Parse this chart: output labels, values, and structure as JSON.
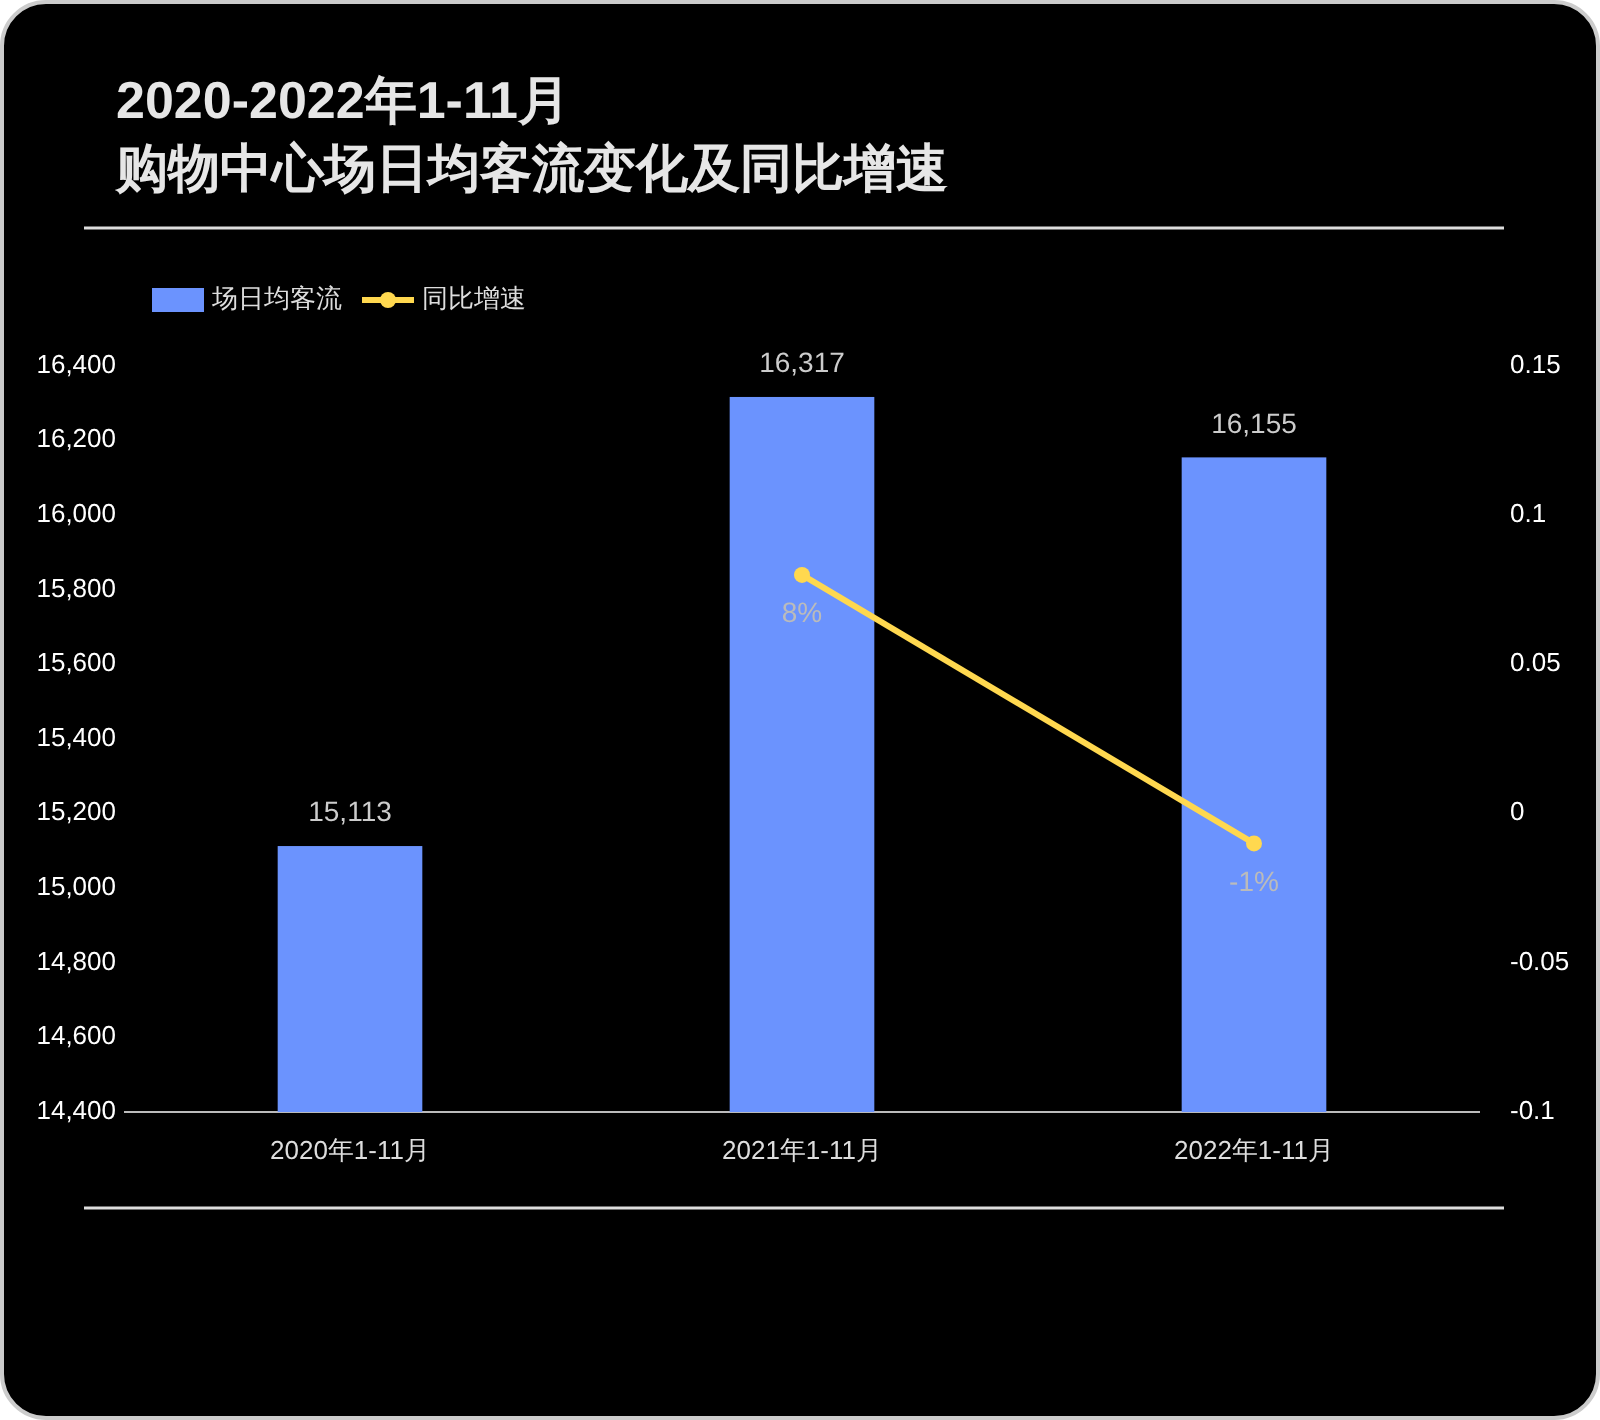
{
  "chart_data": {
    "type": "bar",
    "title": "2020-2022年1-11月",
    "subtitle": "购物中心场日均客流变化及同比增速",
    "categories": [
      "2020年1-11月",
      "2021年1-11月",
      "2022年1-11月"
    ],
    "series": [
      {
        "name": "场日均客流",
        "color": "#6b93fe",
        "values": [
          15113,
          16317,
          16155
        ],
        "value_labels": [
          "15,113",
          "16,317",
          "16,155"
        ]
      },
      {
        "name": "同比增速",
        "type": "line",
        "axis": "y2",
        "color": "#ffd84f",
        "marker": "circle",
        "values": [
          null,
          0.08,
          -0.01
        ],
        "value_labels": [
          null,
          "8%",
          "-1%"
        ]
      }
    ],
    "ylim": [
      14400,
      16400
    ],
    "yticks": [
      {
        "value": 14400,
        "label": "14,400"
      },
      {
        "value": 14600,
        "label": "14,600"
      },
      {
        "value": 14800,
        "label": "14,800"
      },
      {
        "value": 15000,
        "label": "15,000"
      },
      {
        "value": 15200,
        "label": "15,200"
      },
      {
        "value": 15400,
        "label": "15,400"
      },
      {
        "value": 15600,
        "label": "15,600"
      },
      {
        "value": 15800,
        "label": "15,800"
      },
      {
        "value": 16000,
        "label": "16,000"
      },
      {
        "value": 16200,
        "label": "16,200"
      },
      {
        "value": 16400,
        "label": "16,400"
      }
    ],
    "y2lim": [
      -0.1,
      0.15
    ],
    "y2ticks": [
      -0.1,
      -0.05,
      0,
      0.05,
      0.1,
      0.15
    ],
    "legend": "top left",
    "grid": false
  }
}
